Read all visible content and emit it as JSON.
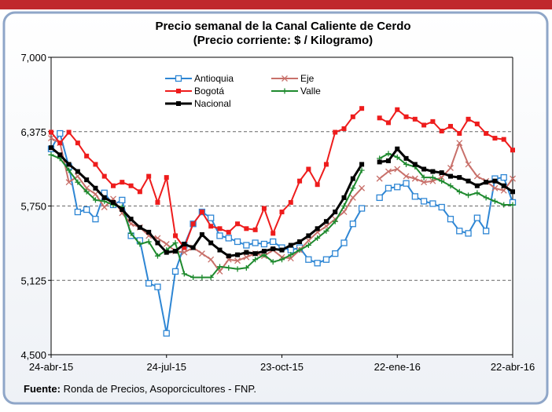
{
  "chart_data": {
    "type": "line",
    "title": "Precio semanal de la Canal Caliente de Cerdo",
    "subtitle": "(Precio corriente: $ / Kilogramo)",
    "source_label": "Fuente:",
    "source": "Ronda de Precios, Asoporcicultores  - FNP.",
    "categories": [
      "24-abr-15",
      null,
      null,
      null,
      null,
      null,
      null,
      null,
      null,
      null,
      null,
      null,
      null,
      "24-jul-15",
      null,
      null,
      null,
      null,
      null,
      null,
      null,
      null,
      null,
      null,
      null,
      null,
      "23-oct-15",
      null,
      null,
      null,
      null,
      null,
      null,
      null,
      null,
      null,
      null,
      null,
      null,
      "22-ene-16",
      null,
      null,
      null,
      null,
      null,
      null,
      null,
      null,
      null,
      null,
      null,
      null,
      "22-abr-16"
    ],
    "ylim": [
      4500,
      7000
    ],
    "yticks": [
      {
        "value": 4500,
        "label": "4,500"
      },
      {
        "value": 5125,
        "label": "5,125"
      },
      {
        "value": 5750,
        "label": "5,750"
      },
      {
        "value": 6375,
        "label": "6,375"
      },
      {
        "value": 7000,
        "label": "7,000"
      }
    ],
    "grid": true,
    "series": [
      {
        "name": "Antioquia",
        "color": "#2e86d4",
        "marker": "square-open",
        "values": [
          6230,
          6360,
          6080,
          5700,
          5720,
          5640,
          5860,
          5760,
          5800,
          5500,
          5460,
          5100,
          5070,
          4680,
          5200,
          5420,
          5600,
          5700,
          5650,
          5500,
          5480,
          5450,
          5420,
          5440,
          5430,
          5450,
          5400,
          5380,
          5400,
          5300,
          5270,
          5300,
          5350,
          5440,
          5600,
          5730,
          null,
          5820,
          5900,
          5910,
          5940,
          5830,
          5790,
          5770,
          5740,
          5640,
          5540,
          5520,
          5650,
          5540,
          5980,
          5990,
          5780
        ]
      },
      {
        "name": "Eje",
        "color": "#c8706a",
        "marker": "x",
        "values": [
          6320,
          6280,
          5950,
          6000,
          5900,
          5850,
          5740,
          5810,
          5690,
          5600,
          5570,
          5500,
          5480,
          5430,
          5370,
          5360,
          5400,
          5350,
          5300,
          5200,
          5300,
          5290,
          5320,
          5350,
          5330,
          5380,
          5320,
          5310,
          5380,
          5460,
          5530,
          5580,
          5640,
          5700,
          5820,
          5900,
          null,
          5980,
          6040,
          6060,
          6000,
          5980,
          5950,
          5960,
          5990,
          6070,
          6280,
          6100,
          6000,
          5960,
          5900,
          5880,
          5980
        ]
      },
      {
        "name": "Bogotá",
        "color": "#ee1c1c",
        "marker": "square-filled",
        "values": [
          6370,
          6280,
          6370,
          6280,
          6170,
          6100,
          6000,
          5920,
          5950,
          5920,
          5870,
          6000,
          5780,
          5990,
          5500,
          5400,
          5600,
          5700,
          5580,
          5560,
          5530,
          5600,
          5560,
          5550,
          5730,
          5520,
          5700,
          5780,
          5960,
          6060,
          5930,
          6100,
          6370,
          6400,
          6500,
          6570,
          null,
          6490,
          6450,
          6560,
          6500,
          6480,
          6430,
          6460,
          6380,
          6420,
          6360,
          6480,
          6440,
          6360,
          6320,
          6310,
          6220
        ]
      },
      {
        "name": "Valle",
        "color": "#1e8a2e",
        "marker": "plus",
        "values": [
          6180,
          6150,
          6050,
          5950,
          5870,
          5800,
          5790,
          5760,
          5740,
          5520,
          5430,
          5450,
          5330,
          5380,
          5440,
          5180,
          5150,
          5150,
          5150,
          5240,
          5230,
          5220,
          5230,
          5300,
          5340,
          5280,
          5300,
          5340,
          5380,
          5420,
          5480,
          5540,
          5620,
          5750,
          5900,
          6050,
          null,
          6150,
          6190,
          6160,
          6100,
          6080,
          5990,
          5990,
          5960,
          5920,
          5870,
          5840,
          5860,
          5820,
          5790,
          5760,
          5760
        ]
      },
      {
        "name": "Nacional",
        "color": "#000000",
        "marker": "square-filled",
        "values": [
          6240,
          6180,
          6100,
          6040,
          5970,
          5900,
          5820,
          5780,
          5720,
          5640,
          5570,
          5530,
          5440,
          5360,
          5370,
          5430,
          5400,
          5510,
          5440,
          5380,
          5330,
          5340,
          5360,
          5350,
          5370,
          5390,
          5380,
          5420,
          5450,
          5500,
          5560,
          5620,
          5700,
          5820,
          5980,
          6100,
          null,
          6120,
          6130,
          6230,
          6150,
          6100,
          6060,
          6040,
          6030,
          6000,
          5990,
          5960,
          5920,
          5950,
          5960,
          5920,
          5870
        ]
      }
    ]
  }
}
